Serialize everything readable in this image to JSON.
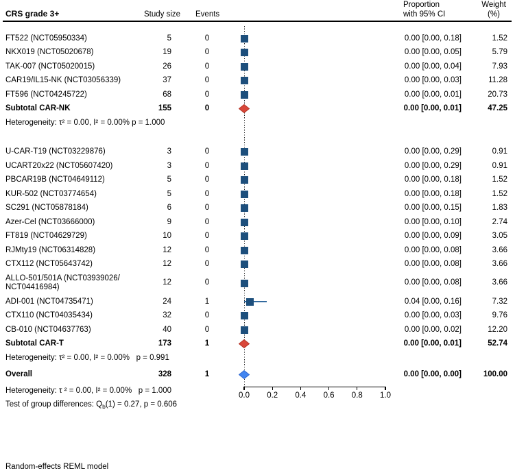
{
  "header": {
    "title": "CRS grade 3+",
    "col_study_size": "Study size",
    "col_events": "Events",
    "col_proportion_line1": "Proportion",
    "col_proportion_line2": "with 95% CI",
    "col_weight_line1": "Weight",
    "col_weight_line2": "(%)"
  },
  "colors": {
    "square": "#1d4f7c",
    "whisker": "#336a9e",
    "subtotal_diamond_fill": "#d9473a",
    "subtotal_diamond_stroke": "#b23527",
    "overall_diamond_fill": "#4285f0",
    "overall_diamond_stroke": "#2f66cf"
  },
  "chart_data": {
    "type": "forest",
    "title": "CRS grade 3+",
    "xlim": [
      0,
      1
    ],
    "x_ticks": [
      "0.0",
      "0.2",
      "0.4",
      "0.6",
      "0.8",
      "1.0"
    ],
    "legend_position": "none",
    "grid": false,
    "groups": [
      {
        "rows": [
          {
            "label": "FT522 (NCT05950334)",
            "size": "5",
            "events": "0",
            "prop": "0.00 [0.00, 0.18]",
            "weight": "1.52",
            "est": 0
          },
          {
            "label": "NKX019 (NCT05020678)",
            "size": "19",
            "events": "0",
            "prop": "0.00 [0.00, 0.05]",
            "weight": "5.79",
            "est": 0
          },
          {
            "label": "TAK-007 (NCT05020015)",
            "size": "26",
            "events": "0",
            "prop": "0.00 [0.00, 0.04]",
            "weight": "7.93",
            "est": 0
          },
          {
            "label": "CAR19/IL15-NK (NCT03056339)",
            "size": "37",
            "events": "0",
            "prop": "0.00 [0.00, 0.03]",
            "weight": "11.28",
            "est": 0
          },
          {
            "label": "FT596 (NCT04245722)",
            "size": "68",
            "events": "0",
            "prop": "0.00 [0.00, 0.01]",
            "weight": "20.73",
            "est": 0
          }
        ],
        "subtotal": {
          "label": "Subtotal CAR-NK",
          "size": "155",
          "events": "0",
          "prop": "0.00 [0.00, 0.01]",
          "weight": "47.25",
          "est": 0
        },
        "heterogeneity": "Heterogeneity: τ² = 0.00, I² = 0.00% p = 1.000"
      },
      {
        "rows": [
          {
            "label": "U-CAR-T19 (NCT03229876)",
            "size": "3",
            "events": "0",
            "prop": "0.00 [0.00, 0.29]",
            "weight": "0.91",
            "est": 0
          },
          {
            "label": "UCART20x22 (NCT05607420)",
            "size": "3",
            "events": "0",
            "prop": "0.00 [0.00, 0.29]",
            "weight": "0.91",
            "est": 0
          },
          {
            "label": "PBCAR19B (NCT04649112)",
            "size": "5",
            "events": "0",
            "prop": "0.00 [0.00, 0.18]",
            "weight": "1.52",
            "est": 0
          },
          {
            "label": "KUR-502 (NCT03774654)",
            "size": "5",
            "events": "0",
            "prop": "0.00 [0.00, 0.18]",
            "weight": "1.52",
            "est": 0
          },
          {
            "label": "SC291 (NCT05878184)",
            "size": "6",
            "events": "0",
            "prop": "0.00 [0.00, 0.15]",
            "weight": "1.83",
            "est": 0
          },
          {
            "label": "Azer-Cel (NCT03666000)",
            "size": "9",
            "events": "0",
            "prop": "0.00 [0.00, 0.10]",
            "weight": "2.74",
            "est": 0
          },
          {
            "label": "FT819 (NCT04629729)",
            "size": "10",
            "events": "0",
            "prop": "0.00 [0.00, 0.09]",
            "weight": "3.05",
            "est": 0
          },
          {
            "label": "RJMty19 (NCT06314828)",
            "size": "12",
            "events": "0",
            "prop": "0.00 [0.00, 0.08]",
            "weight": "3.66",
            "est": 0
          },
          {
            "label": "CTX112 (NCT05643742)",
            "size": "12",
            "events": "0",
            "prop": "0.00 [0.00, 0.08]",
            "weight": "3.66",
            "est": 0
          },
          {
            "label": "ALLO-501/501A (NCT03939026/\nNCT04416984)",
            "two_line": true,
            "size": "12",
            "events": "0",
            "prop": "0.00 [0.00, 0.08]",
            "weight": "3.66",
            "est": 0
          },
          {
            "label": "ADI-001 (NCT04735471)",
            "size": "24",
            "events": "1",
            "prop": "0.04 [0.00, 0.16]",
            "weight": "7.32",
            "est": 0.04,
            "ci": [
              0,
              0.16
            ]
          },
          {
            "label": "CTX110 (NCT04035434)",
            "size": "32",
            "events": "0",
            "prop": "0.00 [0.00, 0.03]",
            "weight": "9.76",
            "est": 0
          },
          {
            "label": "CB-010 (NCT04637763)",
            "size": "40",
            "events": "0",
            "prop": "0.00 [0.00, 0.02]",
            "weight": "12.20",
            "est": 0
          }
        ],
        "subtotal": {
          "label": "Subtotal CAR-T",
          "size": "173",
          "events": "1",
          "prop": "0.00 [0.00, 0.01]",
          "weight": "52.74",
          "est": 0
        },
        "heterogeneity": "Heterogeneity: τ² = 0.00, I² = 0.00%   p = 0.991"
      }
    ],
    "overall": {
      "label": "Overall",
      "size": "328",
      "events": "1",
      "prop": "0.00 [0.00, 0.00]",
      "weight": "100.00",
      "est": 0
    },
    "overall_heterogeneity": "Heterogeneity: τ ² = 0.00, I² = 0.00%   p = 1.000",
    "group_diff": {
      "prefix": "Test of group differences: Q",
      "sub": "b",
      "suffix": "(1) = 0.27, p = 0.606"
    }
  },
  "footer": {
    "model_note": "Random-effects REML model"
  }
}
